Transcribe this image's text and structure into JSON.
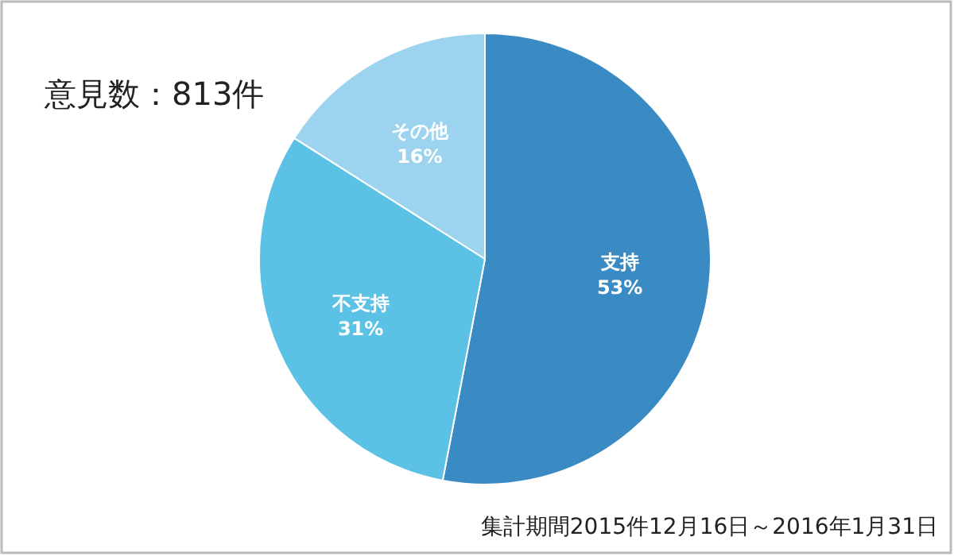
{
  "chart_data": {
    "type": "pie",
    "title": "意見数：813件",
    "categories": [
      "支持",
      "不支持",
      "その他"
    ],
    "values": [
      53,
      31,
      16
    ],
    "colors": [
      "#3a8bc3",
      "#5bc2e6",
      "#9cd3ef"
    ],
    "value_labels": [
      "53%",
      "31%",
      "16%"
    ],
    "annotations": [
      "集計期間2015件12月16日～2016年1月31日"
    ]
  }
}
